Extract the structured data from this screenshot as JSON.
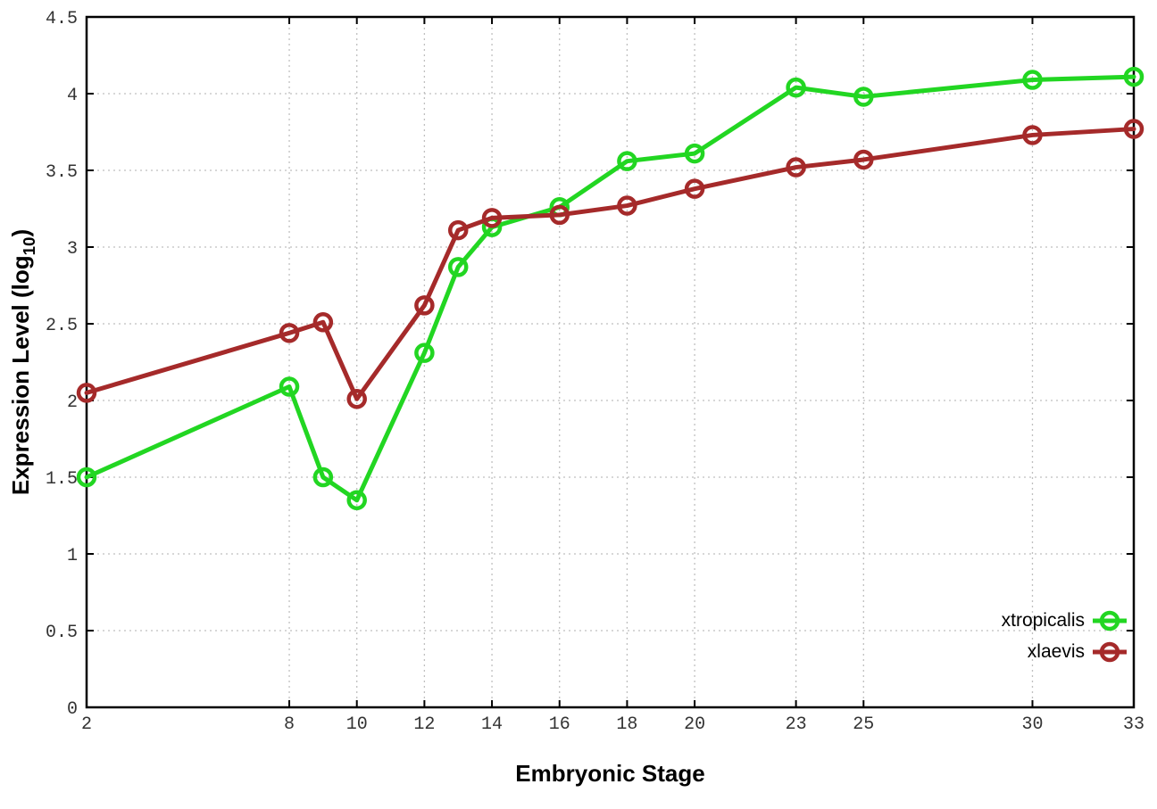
{
  "chart_data": {
    "type": "line",
    "title": "",
    "xlabel": "Embryonic Stage",
    "ylabel": "Expression Level (log10)",
    "ylabel_parts": {
      "prefix": "Expression Level (log",
      "sub": "10",
      "suffix": ")"
    },
    "xlim": [
      2,
      33
    ],
    "ylim": [
      0,
      4.5
    ],
    "x_ticks": [
      2,
      8,
      10,
      12,
      14,
      16,
      18,
      20,
      23,
      25,
      30,
      33
    ],
    "x_tick_labels": [
      "2",
      "8",
      "10",
      "12",
      "14",
      "16",
      "18",
      "20",
      "23",
      "25",
      "30",
      "33"
    ],
    "y_ticks": [
      0,
      0.5,
      1,
      1.5,
      2,
      2.5,
      3,
      3.5,
      4,
      4.5
    ],
    "y_tick_labels": [
      "0",
      "0.5",
      "1",
      "1.5",
      "2",
      "2.5",
      "3",
      "3.5",
      "4",
      "4.5"
    ],
    "grid": true,
    "grid_style": "dotted",
    "legend_position": "bottom-right",
    "x": [
      2,
      8,
      9,
      10,
      12,
      13,
      14,
      16,
      18,
      20,
      23,
      25,
      30,
      33
    ],
    "series": [
      {
        "name": "xtropicalis",
        "color": "#22d622",
        "values": [
          1.5,
          2.09,
          1.5,
          1.35,
          2.31,
          2.87,
          3.13,
          3.26,
          3.56,
          3.61,
          4.04,
          3.98,
          4.09,
          4.11
        ]
      },
      {
        "name": "xlaevis",
        "color": "#a52a2a",
        "values": [
          2.05,
          2.44,
          2.51,
          2.01,
          2.62,
          3.11,
          3.19,
          3.21,
          3.27,
          3.38,
          3.52,
          3.57,
          3.73,
          3.77
        ]
      }
    ],
    "colors": {
      "axis": "#000000",
      "grid": "#bfbfbf",
      "tick_label": "#333333",
      "background": "#ffffff"
    },
    "marker": "open-circle"
  }
}
